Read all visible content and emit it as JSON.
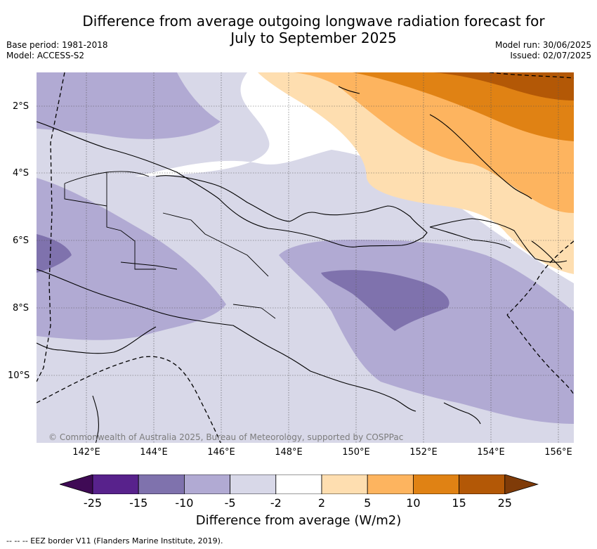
{
  "title_line1": "Difference from average outgoing longwave radiation forecast for",
  "title_line2": "July to September 2025",
  "meta_left": {
    "base_period": "Base period: 1981-2018",
    "model": "Model: ACCESS-S2"
  },
  "meta_right": {
    "model_run": "Model run: 30/06/2025",
    "issued": "Issued: 02/07/2025"
  },
  "map": {
    "copyright": "© Commonwealth of Australia 2025, Bureau of Meteorology, supported by COSPPac",
    "lat_labels": [
      "2°S",
      "4°S",
      "6°S",
      "8°S",
      "10°S"
    ],
    "lon_labels": [
      "142°E",
      "144°E",
      "146°E",
      "148°E",
      "150°E",
      "152°E",
      "154°E",
      "156°E"
    ],
    "extent": {
      "lon": [
        140.9,
        156.8
      ],
      "lat": [
        -12.0,
        -1.0
      ]
    }
  },
  "colorbar": {
    "title": "Difference from average (W/m2)",
    "labels": [
      "-25",
      "-15",
      "-10",
      "-5",
      "-2",
      "2",
      "5",
      "10",
      "15",
      "25"
    ],
    "colors": [
      "#3f0a55",
      "#58228c",
      "#7f72ad",
      "#b1aad3",
      "#d8d8e8",
      "#ffffff",
      "#fedeb0",
      "#fdb45f",
      "#e08214",
      "#b35806",
      "#7f3b08"
    ]
  },
  "legend_note": "-- -- -- EEZ border V11 (Flanders Marine Institute, 2019)."
}
